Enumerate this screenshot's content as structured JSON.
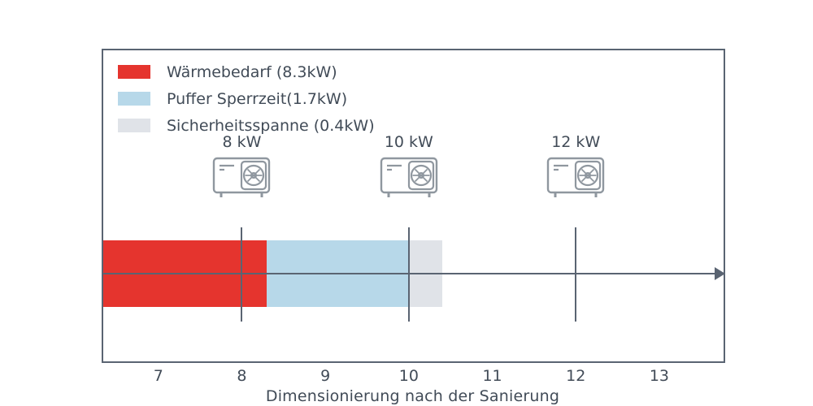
{
  "legend": {
    "items": [
      {
        "label": "Wärmebedarf (8.3kW)",
        "color": "#e5342e"
      },
      {
        "label": "Puffer Sperrzeit(1.7kW)",
        "color": "#b7d8e9"
      },
      {
        "label": "Sicherheitsspanne (0.4kW)",
        "color": "#e0e3e8"
      }
    ]
  },
  "chart_data": {
    "type": "bar",
    "orientation": "horizontal",
    "title": "",
    "xlabel": "Dimensionierung nach der Sanierung",
    "ylabel": "",
    "xlim": [
      6.34,
      13.77
    ],
    "x_ticks": [
      7,
      8,
      9,
      10,
      11,
      12,
      13
    ],
    "grid": false,
    "legend_position": "upper left",
    "segments": [
      {
        "name": "Wärmebedarf",
        "value_kw": 8.3,
        "start": 6.34,
        "end": 8.3,
        "color": "#e5342e"
      },
      {
        "name": "Puffer Sperrzeit",
        "value_kw": 1.7,
        "start": 8.3,
        "end": 10.0,
        "color": "#b7d8e9"
      },
      {
        "name": "Sicherheitsspanne",
        "value_kw": 0.4,
        "start": 10.0,
        "end": 10.4,
        "color": "#e0e3e8"
      }
    ],
    "markers": [
      {
        "label": "8 kW",
        "value": 8
      },
      {
        "label": "10 kW",
        "value": 10
      },
      {
        "label": "12 kW",
        "value": 12
      }
    ],
    "arrow": {
      "direction": "right",
      "position": "bar-center"
    }
  },
  "colors": {
    "frame": "#5a6472",
    "text": "#414b57",
    "icon_stroke": "#8f979f",
    "background": "#ffffff"
  }
}
